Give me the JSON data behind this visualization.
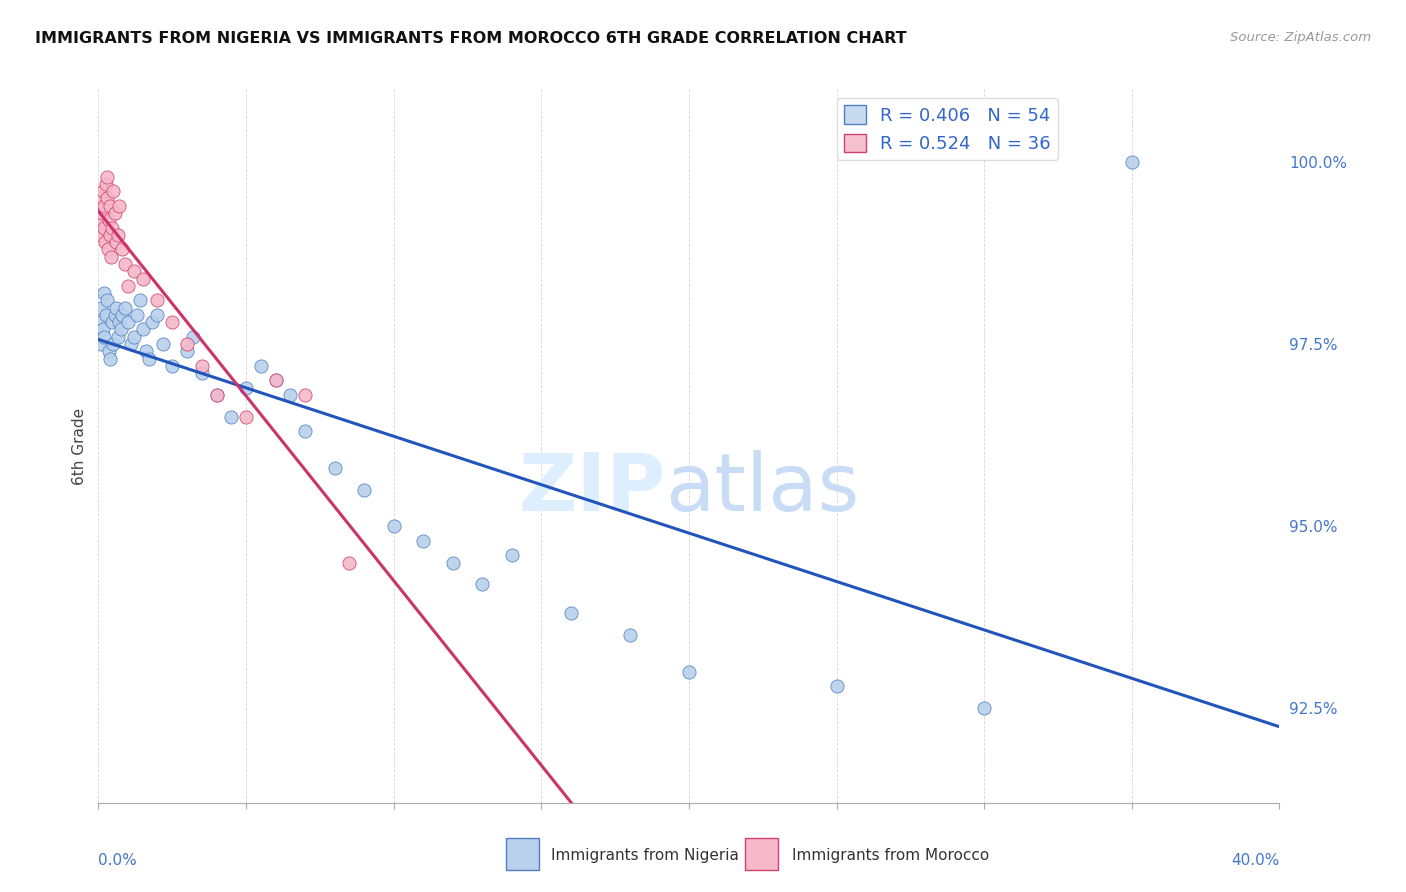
{
  "title": "IMMIGRANTS FROM NIGERIA VS IMMIGRANTS FROM MOROCCO 6TH GRADE CORRELATION CHART",
  "source": "Source: ZipAtlas.com",
  "ylabel": "6th Grade",
  "right_yticks": [
    100.0,
    97.5,
    95.0,
    92.5
  ],
  "xlim": [
    0.0,
    40.0
  ],
  "ylim": [
    91.2,
    101.0
  ],
  "nigeria_label": "Immigrants from Nigeria",
  "morocco_label": "Immigrants from Morocco",
  "nigeria_R": 0.406,
  "nigeria_N": 54,
  "morocco_R": 0.524,
  "morocco_N": 36,
  "nigeria_dot_color": "#b8d0ec",
  "morocco_dot_color": "#f5b8c8",
  "nigeria_edge_color": "#5080c0",
  "morocco_edge_color": "#d04070",
  "nigeria_line_color": "#2255bb",
  "morocco_line_color": "#cc3366",
  "watermark_zip_color": "#ddeeff",
  "watermark_atlas_color": "#c8ddf5",
  "nig_x": [
    0.05,
    0.1,
    0.1,
    0.15,
    0.2,
    0.2,
    0.25,
    0.3,
    0.35,
    0.4,
    0.45,
    0.5,
    0.55,
    0.6,
    0.65,
    0.7,
    0.75,
    0.8,
    0.9,
    1.0,
    1.1,
    1.2,
    1.3,
    1.4,
    1.5,
    1.6,
    1.7,
    1.8,
    2.0,
    2.2,
    2.5,
    3.0,
    3.2,
    3.5,
    4.0,
    4.5,
    5.0,
    5.5,
    6.0,
    6.5,
    7.0,
    8.0,
    9.0,
    10.0,
    11.0,
    12.0,
    13.0,
    14.0,
    16.0,
    18.0,
    20.0,
    25.0,
    30.0,
    35.0
  ],
  "nig_y": [
    97.8,
    98.0,
    97.5,
    97.7,
    97.6,
    98.2,
    97.9,
    98.1,
    97.4,
    97.3,
    97.8,
    97.5,
    97.9,
    98.0,
    97.6,
    97.8,
    97.7,
    97.9,
    98.0,
    97.8,
    97.5,
    97.6,
    97.9,
    98.1,
    97.7,
    97.4,
    97.3,
    97.8,
    97.9,
    97.5,
    97.2,
    97.4,
    97.6,
    97.1,
    96.8,
    96.5,
    96.9,
    97.2,
    97.0,
    96.8,
    96.3,
    95.8,
    95.5,
    95.0,
    94.8,
    94.5,
    94.2,
    94.6,
    93.8,
    93.5,
    93.0,
    92.8,
    92.5,
    100.0
  ],
  "mor_x": [
    0.05,
    0.08,
    0.1,
    0.12,
    0.15,
    0.18,
    0.2,
    0.22,
    0.25,
    0.28,
    0.3,
    0.32,
    0.35,
    0.38,
    0.4,
    0.42,
    0.45,
    0.5,
    0.55,
    0.6,
    0.65,
    0.7,
    0.8,
    0.9,
    1.0,
    1.2,
    1.5,
    2.0,
    2.5,
    3.0,
    3.5,
    4.0,
    5.0,
    6.0,
    7.0,
    8.5
  ],
  "mor_y": [
    99.2,
    99.5,
    99.0,
    99.3,
    99.6,
    99.1,
    99.4,
    98.9,
    99.7,
    99.8,
    99.5,
    98.8,
    99.2,
    99.0,
    99.4,
    98.7,
    99.1,
    99.6,
    99.3,
    98.9,
    99.0,
    99.4,
    98.8,
    98.6,
    98.3,
    98.5,
    98.4,
    98.1,
    97.8,
    97.5,
    97.2,
    96.8,
    96.5,
    97.0,
    96.8,
    94.5
  ]
}
